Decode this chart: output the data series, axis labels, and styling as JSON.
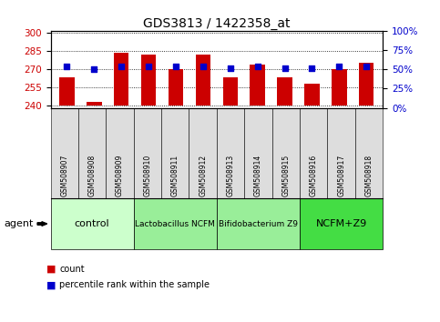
{
  "title": "GDS3813 / 1422358_at",
  "samples": [
    "GSM508907",
    "GSM508908",
    "GSM508909",
    "GSM508910",
    "GSM508911",
    "GSM508912",
    "GSM508913",
    "GSM508914",
    "GSM508915",
    "GSM508916",
    "GSM508917",
    "GSM508918"
  ],
  "bar_values": [
    263,
    243,
    284,
    282,
    270,
    282,
    263,
    274,
    263,
    258,
    270,
    275
  ],
  "bar_base": 240,
  "blue_values": [
    272,
    270,
    272,
    272,
    272,
    272,
    271,
    272,
    271,
    271,
    272,
    272
  ],
  "bar_color": "#cc0000",
  "blue_color": "#0000cc",
  "ylim_left": [
    238,
    302
  ],
  "ylim_right": [
    0,
    100
  ],
  "yticks_left": [
    240,
    255,
    270,
    285,
    300
  ],
  "yticks_right": [
    0,
    25,
    50,
    75,
    100
  ],
  "group_defs": [
    {
      "label": "control",
      "start": 0,
      "end": 2,
      "color": "#ccffcc"
    },
    {
      "label": "Lactobacillus NCFM",
      "start": 3,
      "end": 5,
      "color": "#99ee99"
    },
    {
      "label": "Bifidobacterium Z9",
      "start": 6,
      "end": 8,
      "color": "#99ee99"
    },
    {
      "label": "NCFM+Z9",
      "start": 9,
      "end": 11,
      "color": "#44dd44"
    }
  ],
  "agent_label": "agent",
  "legend_count": "count",
  "legend_percentile": "percentile rank within the sample",
  "title_fontsize": 10,
  "tick_label_color_left": "#cc0000",
  "tick_label_color_right": "#0000cc",
  "background_color": "#ffffff"
}
